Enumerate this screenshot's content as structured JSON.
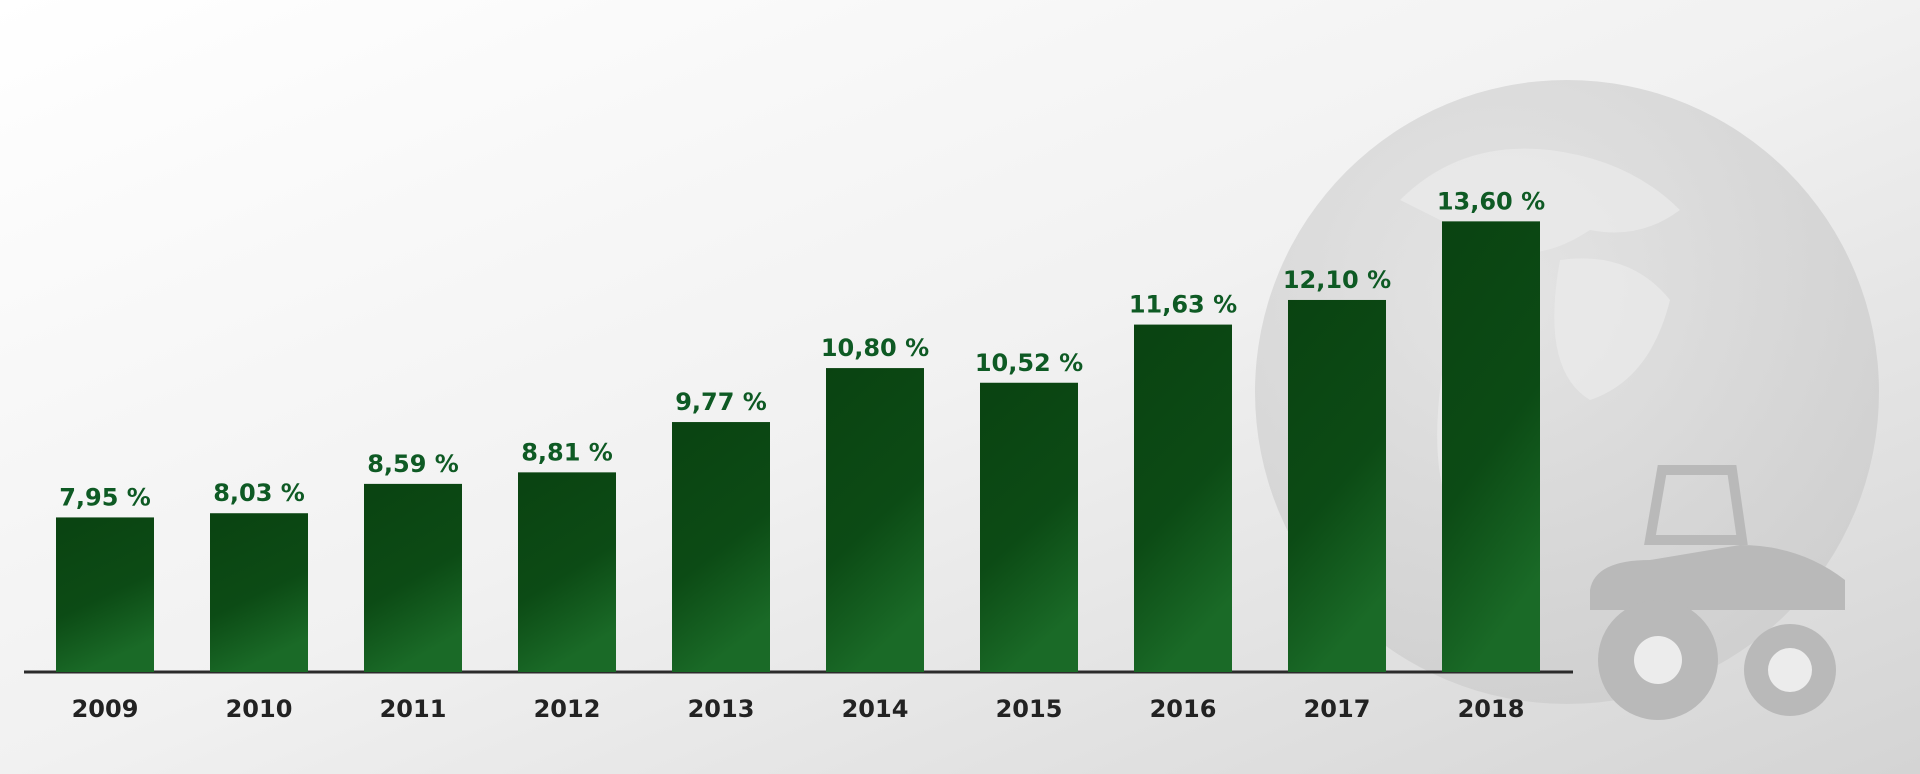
{
  "chart_data": {
    "type": "bar",
    "categories": [
      "2009",
      "2010",
      "2011",
      "2012",
      "2013",
      "2014",
      "2015",
      "2016",
      "2017",
      "2018"
    ],
    "values": [
      7.95,
      8.03,
      8.59,
      8.81,
      9.77,
      10.8,
      10.52,
      11.63,
      12.1,
      13.6
    ],
    "value_labels": [
      "7,95 %",
      "8,03 %",
      "8,59 %",
      "8,81 %",
      "9,77 %",
      "10,80 %",
      "10,52 %",
      "11,63 %",
      "12,10 %",
      "13,60 %"
    ],
    "color": "#0b4a14",
    "ylim": [
      5,
      15
    ]
  }
}
